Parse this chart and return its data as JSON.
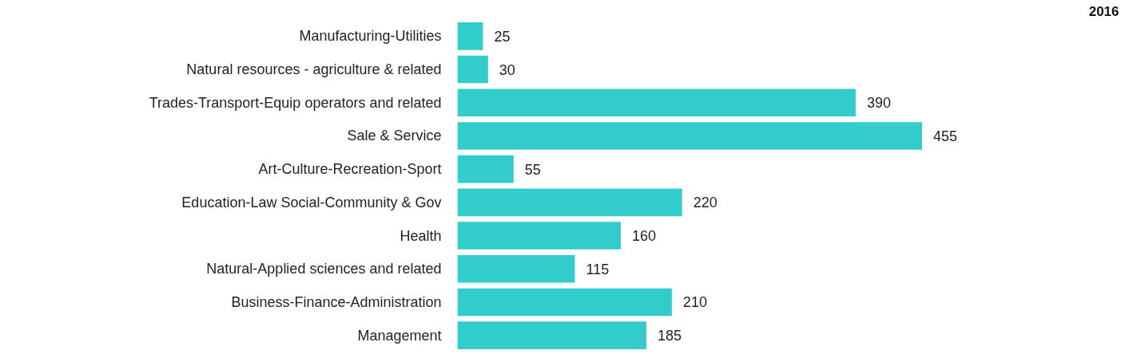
{
  "chart_data": {
    "type": "bar",
    "orientation": "horizontal",
    "title": "2016",
    "categories": [
      "Manufacturing-Utilities",
      "Natural resources - agriculture & related",
      "Trades-Transport-Equip operators and related",
      "Sale & Service",
      "Art-Culture-Recreation-Sport",
      "Education-Law Social-Community & Gov",
      "Health",
      "Natural-Applied sciences and related",
      "Business-Finance-Administration",
      "Management"
    ],
    "values": [
      25,
      30,
      390,
      455,
      55,
      220,
      160,
      115,
      210,
      185
    ],
    "color": "#33cccc",
    "data_labels": true
  }
}
